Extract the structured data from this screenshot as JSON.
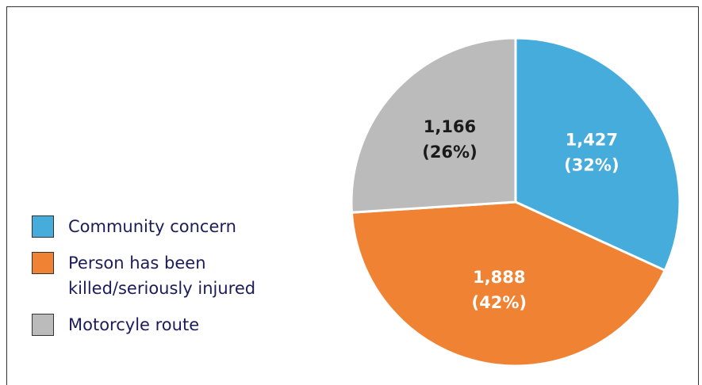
{
  "chart_data": {
    "type": "pie",
    "categories": [
      "Community concern",
      "Person has been killed/seriously injured",
      "Motorcyle route"
    ],
    "values": [
      1427,
      1888,
      1166
    ],
    "value_labels": [
      "1,427",
      "1,888",
      "1,166"
    ],
    "percent_labels": [
      "(32%)",
      "(42%)",
      "(26%)"
    ],
    "colors": [
      "#45acdc",
      "#f08233",
      "#bbbbbb"
    ],
    "label_colors": [
      "#ffffff",
      "#ffffff",
      "#1a1a1a"
    ],
    "legend": "left"
  }
}
